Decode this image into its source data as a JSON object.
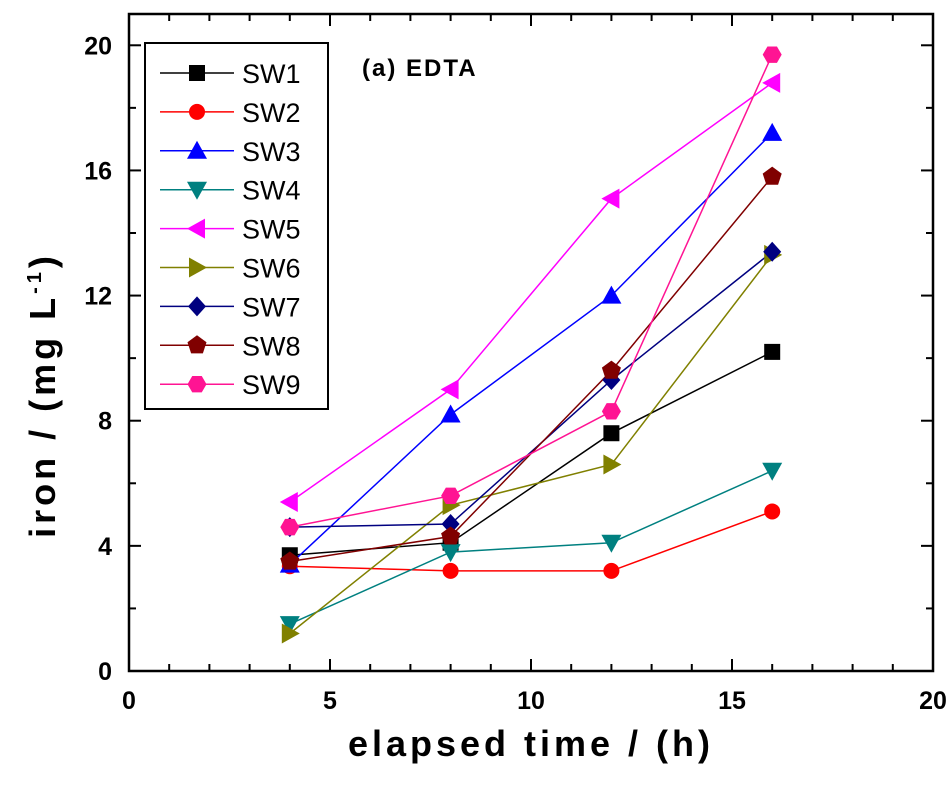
{
  "chart_data": {
    "type": "line",
    "annotation": "(a) EDTA",
    "xlabel": "elapsed time / (h)",
    "ylabel": "iron / (mg L",
    "ylabel_superscript": "-1",
    "ylabel_suffix": ")",
    "xlim": [
      0,
      20
    ],
    "ylim": [
      0,
      21
    ],
    "xticks": [
      0,
      5,
      10,
      15,
      20
    ],
    "yticks": [
      0,
      4,
      8,
      12,
      16,
      20
    ],
    "xtick_labels": [
      "0",
      "5",
      "10",
      "15",
      "20"
    ],
    "ytick_labels": [
      "0",
      "4",
      "8",
      "12",
      "16",
      "20"
    ],
    "grid": false,
    "legend_position": "top-left",
    "x": [
      4,
      8,
      12,
      16
    ],
    "series": [
      {
        "name": "SW1",
        "color": "#000000",
        "marker": "square",
        "values": [
          3.7,
          4.1,
          7.6,
          10.2
        ]
      },
      {
        "name": "SW2",
        "color": "#ff0000",
        "marker": "circle",
        "values": [
          3.35,
          3.2,
          3.2,
          5.1
        ]
      },
      {
        "name": "SW3",
        "color": "#0000ff",
        "marker": "triangle-up",
        "values": [
          3.4,
          8.2,
          12.0,
          17.2
        ]
      },
      {
        "name": "SW4",
        "color": "#008080",
        "marker": "triangle-down",
        "values": [
          1.5,
          3.8,
          4.1,
          6.4
        ]
      },
      {
        "name": "SW5",
        "color": "#ff00ff",
        "marker": "triangle-left",
        "values": [
          5.4,
          9.0,
          15.1,
          18.8
        ]
      },
      {
        "name": "SW6",
        "color": "#808000",
        "marker": "triangle-right",
        "values": [
          1.2,
          5.3,
          6.6,
          13.3
        ]
      },
      {
        "name": "SW7",
        "color": "#000080",
        "marker": "diamond",
        "values": [
          4.6,
          4.7,
          9.3,
          13.4
        ]
      },
      {
        "name": "SW8",
        "color": "#800000",
        "marker": "pentagon",
        "values": [
          3.5,
          4.3,
          9.6,
          15.8
        ]
      },
      {
        "name": "SW9",
        "color": "#ff1493",
        "marker": "hexagon",
        "values": [
          4.6,
          5.6,
          8.3,
          19.7
        ]
      }
    ]
  }
}
